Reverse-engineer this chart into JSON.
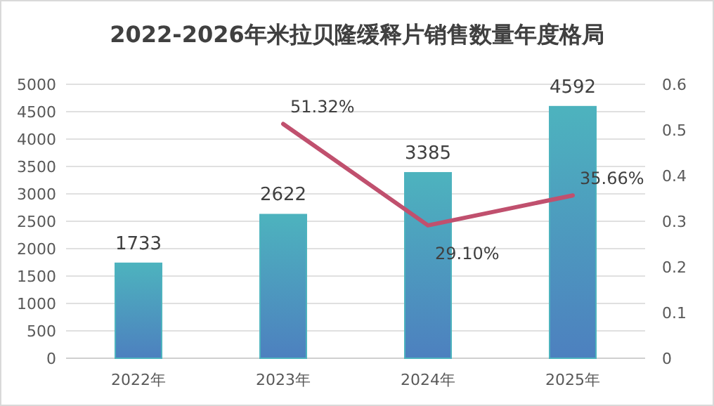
{
  "chart_data": {
    "type": "bar",
    "title": "2022-2026年米拉贝隆缓释片销售数量年度格局",
    "categories": [
      "2022年",
      "2023年",
      "2024年",
      "2025年"
    ],
    "series": [
      {
        "color": "#4db3be",
        "values": [
          1733,
          2622,
          3385,
          4592
        ],
        "value_labels": [
          "1733",
          "2622",
          "3385",
          "4592"
        ]
      },
      {
        "type": "line",
        "axis": "y2",
        "color": "#c0506e",
        "values": [
          null,
          0.5132,
          0.291,
          0.3566
        ],
        "value_labels": [
          null,
          "51.32%",
          "29.10%",
          "35.66%"
        ]
      }
    ],
    "ylim": [
      0,
      5000
    ],
    "yticks": [
      0,
      500,
      1000,
      1500,
      2000,
      2500,
      3000,
      3500,
      4000,
      4500,
      5000
    ],
    "y2lim": [
      0,
      0.6
    ],
    "y2ticks": [
      0,
      0.1,
      0.2,
      0.3,
      0.4,
      0.5,
      0.6
    ],
    "grid": "y",
    "marker": "none",
    "line_style": "solid"
  }
}
